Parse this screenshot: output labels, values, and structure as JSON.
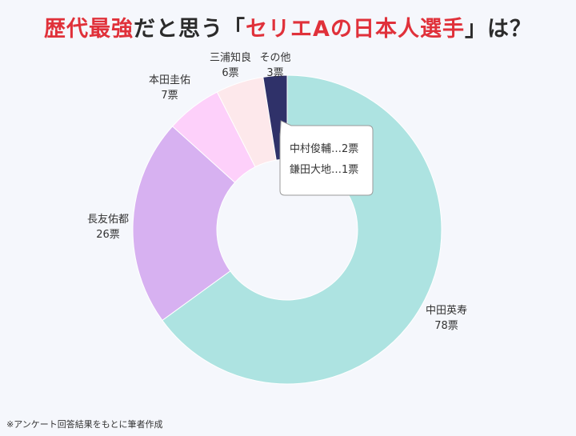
{
  "title": {
    "part1": "歴代最強",
    "part2": "だと思う「",
    "part3": "セリエAの日本人選手",
    "part4": "」は？",
    "accent_color": "#e0313a",
    "text_color": "#2b2b2b"
  },
  "chart_data": {
    "type": "pie",
    "donut": true,
    "slices": [
      {
        "name": "中田英寿",
        "value": 78,
        "label_value": "78票",
        "color": "#ade3e1"
      },
      {
        "name": "長友佑都",
        "value": 26,
        "label_value": "26票",
        "color": "#d7b1f1"
      },
      {
        "name": "本田圭佑",
        "value": 7,
        "label_value": "7票",
        "color": "#fdd0fa"
      },
      {
        "name": "三浦知良",
        "value": 6,
        "label_value": "6票",
        "color": "#fde8eb"
      },
      {
        "name": "その他",
        "value": 3,
        "label_value": "3票",
        "color": "#2f3169"
      }
    ],
    "callout": {
      "target": "その他",
      "items": [
        "中村俊輔…2票",
        "鎌田大地…1票"
      ]
    },
    "legend": "none"
  },
  "footnote": "※アンケート回答結果をもとに筆者作成"
}
